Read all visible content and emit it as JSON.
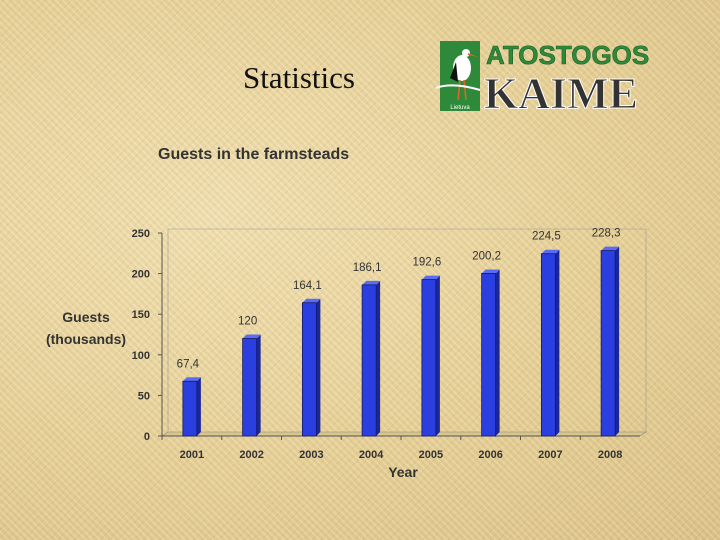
{
  "slide": {
    "title": "Statistics"
  },
  "logo": {
    "line1": "ATOSTOGOS",
    "line2": "KAIME",
    "badge": "Lietuva"
  },
  "colors": {
    "bar": "#2b3fe0",
    "bar_top": "#5a6cf2",
    "bar_side": "#1a2699",
    "logo_green": "#2e8a3a",
    "logo_dark": "#2a2a2a"
  },
  "chart_data": {
    "type": "bar",
    "title": "Guests in the farmsteads",
    "xlabel": "Year",
    "ylabel_lines": [
      "Guests",
      "(thousands)"
    ],
    "categories": [
      "2001",
      "2002",
      "2003",
      "2004",
      "2005",
      "2006",
      "2007",
      "2008"
    ],
    "values": [
      67.4,
      120,
      164.1,
      186.1,
      192.6,
      200.2,
      224.5,
      228.3
    ],
    "data_labels": [
      "67,4",
      "120",
      "164,1",
      "186,1",
      "192,6",
      "200,2",
      "224,5",
      "228,3"
    ],
    "ylim": [
      0,
      250
    ],
    "yticks": [
      0,
      50,
      100,
      150,
      200,
      250
    ],
    "grid": false,
    "legend": "none"
  }
}
